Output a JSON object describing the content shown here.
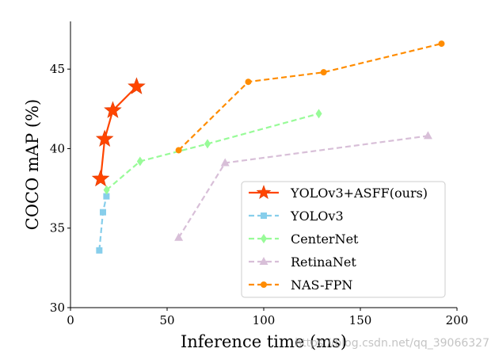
{
  "chart_data": {
    "type": "line",
    "title": "",
    "xlabel": "Inference time (ms)",
    "ylabel": "COCO mAP (%)",
    "xlim": [
      0,
      200
    ],
    "ylim": [
      30,
      48
    ],
    "xticks": [
      0,
      50,
      100,
      150,
      200
    ],
    "yticks": [
      30,
      35,
      40,
      45
    ],
    "grid": false,
    "legend_position": "lower-right",
    "series": [
      {
        "name": "YOLOv3+ASFF(ours)",
        "color": "#ff4500",
        "marker": "star",
        "linestyle": "solid",
        "x": [
          15.6,
          17.7,
          21.9,
          34.2
        ],
        "y": [
          38.1,
          40.6,
          42.4,
          43.9
        ]
      },
      {
        "name": "YOLOv3",
        "color": "#87ceeb",
        "marker": "square",
        "linestyle": "dashed",
        "x": [
          14.9,
          16.8,
          18.6
        ],
        "y": [
          33.6,
          36.0,
          37.0
        ]
      },
      {
        "name": "CenterNet",
        "color": "#98fb98",
        "marker": "diamond",
        "linestyle": "dashed",
        "x": [
          18.7,
          36.0,
          70.9,
          128.5
        ],
        "y": [
          37.4,
          39.2,
          40.3,
          42.2
        ]
      },
      {
        "name": "RetinaNet",
        "color": "#d8bfd8",
        "marker": "triangle",
        "linestyle": "dashed",
        "x": [
          56.0,
          80.0,
          185.0
        ],
        "y": [
          34.4,
          39.1,
          40.8
        ]
      },
      {
        "name": "NAS-FPN",
        "color": "#ff8c00",
        "marker": "circle",
        "linestyle": "dashed",
        "x": [
          56.0,
          92.0,
          131.0,
          192.0
        ],
        "y": [
          39.9,
          44.2,
          44.8,
          46.6
        ]
      }
    ]
  },
  "watermark_text": "https://blog.csdn.net/qq_39066327"
}
